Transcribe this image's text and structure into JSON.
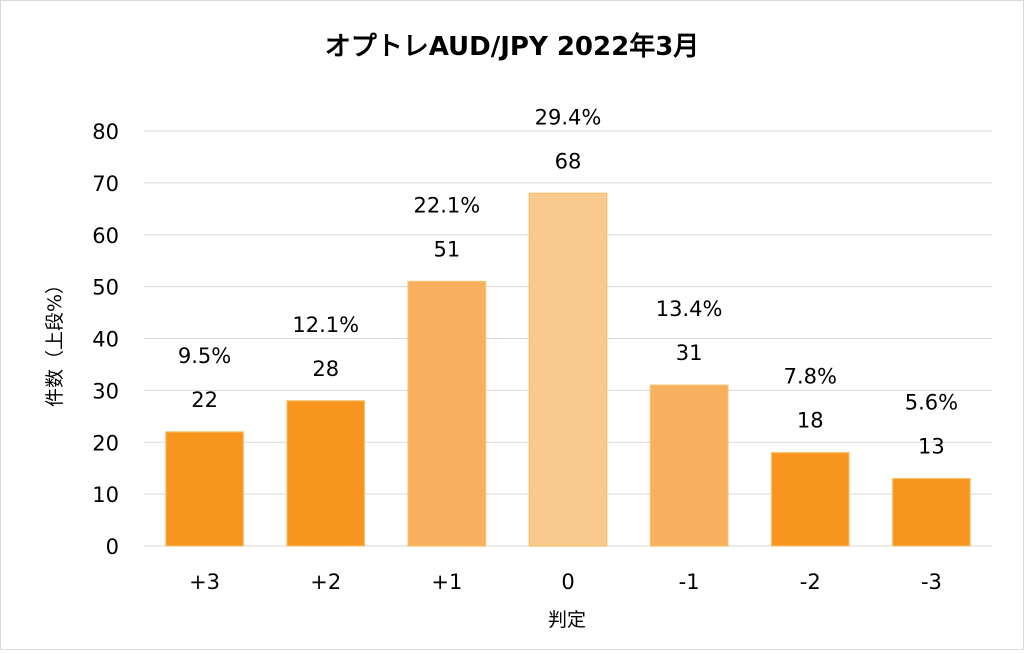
{
  "chart_data": {
    "type": "bar",
    "title": "オプトレAUD/JPY 2022年3月",
    "xlabel": "判定",
    "ylabel": "件数（上段%）",
    "categories": [
      "+3",
      "+2",
      "+1",
      "0",
      "-1",
      "-2",
      "-3"
    ],
    "values": [
      22,
      28,
      51,
      68,
      31,
      18,
      13
    ],
    "percent_labels": [
      "9.5%",
      "12.1%",
      "22.1%",
      "29.4%",
      "13.4%",
      "7.8%",
      "5.6%"
    ],
    "bar_colors": [
      "#F7941D",
      "#F7941D",
      "#F8B05E",
      "#F9C98E",
      "#F8B05E",
      "#F7941D",
      "#F7941D"
    ],
    "ylim": [
      0,
      80
    ],
    "yticks": [
      0,
      10,
      20,
      30,
      40,
      50,
      60,
      70,
      80
    ],
    "grid": true,
    "legend": "none"
  }
}
